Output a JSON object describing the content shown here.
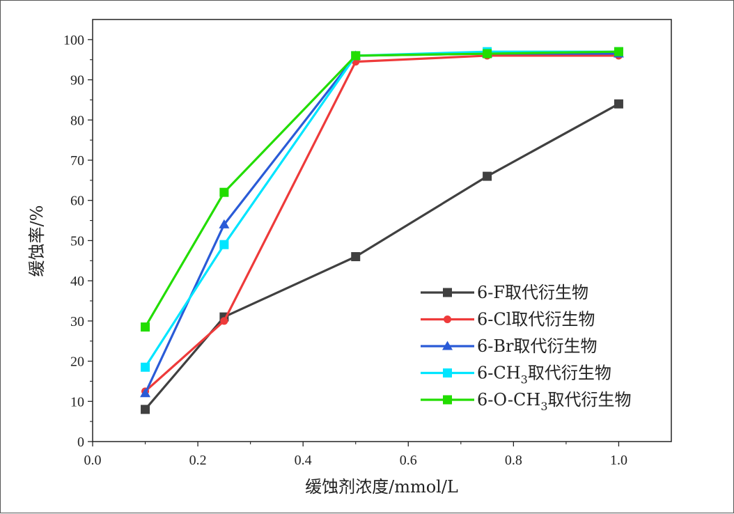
{
  "chart_data": {
    "type": "line",
    "xlabel": "缓蚀剂浓度/mmol/L",
    "ylabel": "缓蚀率/%",
    "xlim": [
      0.0,
      1.1
    ],
    "ylim": [
      0,
      105
    ],
    "x_ticks": [
      0.0,
      0.2,
      0.4,
      0.6,
      0.8,
      1.0
    ],
    "x_tick_labels": [
      "0.0",
      "0.2",
      "0.4",
      "0.6",
      "0.8",
      "1.0"
    ],
    "y_ticks": [
      0,
      10,
      20,
      30,
      40,
      50,
      60,
      70,
      80,
      90,
      100
    ],
    "y_tick_labels": [
      "0",
      "10",
      "20",
      "30",
      "40",
      "50",
      "60",
      "70",
      "80",
      "90",
      "100"
    ],
    "grid": false,
    "legend_position": "bottom-right",
    "x": [
      0.1,
      0.25,
      0.5,
      0.75,
      1.0
    ],
    "series": [
      {
        "name": "6-F取代衍生物",
        "legend_prefix": "6-F",
        "legend_sub": "",
        "legend_suffix": "取代衍生物",
        "color": "#404040",
        "marker": "square",
        "values": [
          8,
          31,
          46,
          66,
          84
        ]
      },
      {
        "name": "6-Cl取代衍生物",
        "legend_prefix": "6-Cl",
        "legend_sub": "",
        "legend_suffix": "取代衍生物",
        "color": "#ee3a3a",
        "marker": "circle",
        "values": [
          12.5,
          30,
          94.5,
          96,
          96
        ]
      },
      {
        "name": "6-Br取代衍生物",
        "legend_prefix": "6-Br",
        "legend_sub": "",
        "legend_suffix": "取代衍生物",
        "color": "#2a5bd7",
        "marker": "triangle",
        "values": [
          12,
          54,
          96,
          96.5,
          96.5
        ]
      },
      {
        "name": "6-CH3取代衍生物",
        "legend_prefix": "6-CH",
        "legend_sub": "3",
        "legend_suffix": "取代衍生物",
        "color": "#00e5ff",
        "marker": "square",
        "values": [
          18.5,
          49,
          96,
          97,
          97
        ]
      },
      {
        "name": "6-O-CH3取代衍生物",
        "legend_prefix": "6-O-CH",
        "legend_sub": "3",
        "legend_suffix": "取代衍生物",
        "color": "#22dd00",
        "marker": "square",
        "values": [
          28.5,
          62,
          96,
          96.5,
          97
        ]
      }
    ]
  }
}
